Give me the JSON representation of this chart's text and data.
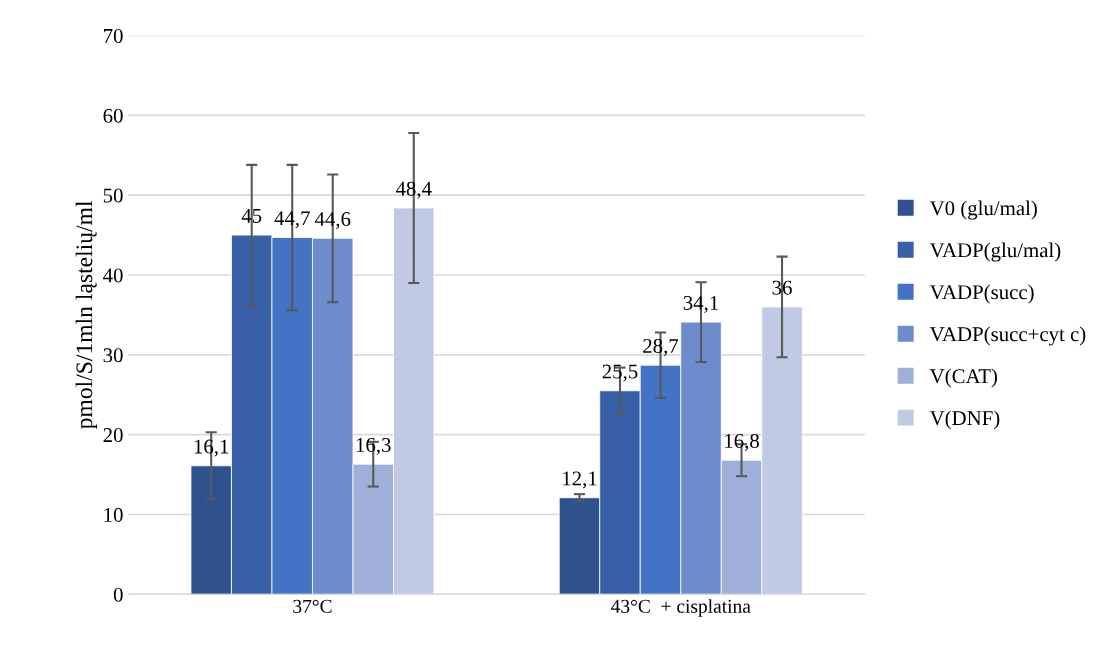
{
  "chart_data": {
    "type": "bar",
    "ylabel": "pmol/S/1mln ląstelių/ml",
    "categories": [
      "37°C",
      "43°C  + cisplatina"
    ],
    "ylim": [
      0,
      70
    ],
    "yticks": [
      0,
      10,
      20,
      30,
      40,
      50,
      60,
      70
    ],
    "grid": "y",
    "legend": "right",
    "series": [
      {
        "name": "V0 (glu/mal)",
        "color": "#2f528f",
        "values": [
          16.1,
          12.1
        ],
        "value_labels": [
          "16,1",
          "12,1"
        ],
        "errors": [
          4.2,
          0.45
        ]
      },
      {
        "name": "VADP(glu/mal)",
        "color": "#3860a8",
        "values": [
          45,
          25.5
        ],
        "value_labels": [
          "45",
          "25,5"
        ],
        "errors": [
          8.8,
          2.9
        ]
      },
      {
        "name": "VADP(succ)",
        "color": "#4472c4",
        "values": [
          44.7,
          28.7
        ],
        "value_labels": [
          "44,7",
          "28,7"
        ],
        "errors": [
          9.1,
          4.1
        ]
      },
      {
        "name": "VADP(succ+cyt c)",
        "color": "#6e8bcb",
        "values": [
          44.6,
          34.1
        ],
        "value_labels": [
          "44,6",
          "34,1"
        ],
        "errors": [
          8.0,
          5.0
        ]
      },
      {
        "name": "V(CAT)",
        "color": "#9fafd9",
        "values": [
          16.3,
          16.8
        ],
        "value_labels": [
          "16,3",
          "16,8"
        ],
        "errors": [
          2.8,
          2.0
        ]
      },
      {
        "name": "V(DNF)",
        "color": "#c0cae4",
        "values": [
          48.4,
          36
        ],
        "value_labels": [
          "48,4",
          "36"
        ],
        "errors": [
          9.4,
          6.3
        ]
      }
    ]
  }
}
